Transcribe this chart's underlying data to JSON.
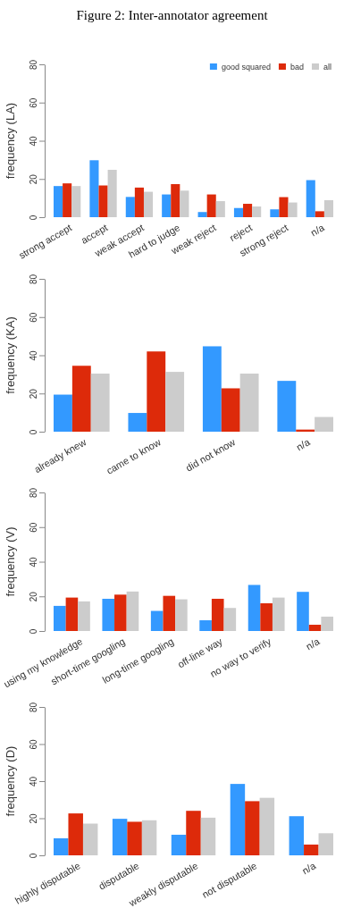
{
  "chart_data": [
    {
      "type": "bar",
      "title": "Figure 2:  Inter-annotator agreement",
      "ylabel": "frequency (LA)",
      "categories": [
        "strong accept",
        "accept",
        "weak accept",
        "hard to judge",
        "weak reject",
        "reject",
        "strong reject",
        "n/a"
      ],
      "ylim": [
        0,
        80
      ],
      "yticks": [
        0,
        20,
        40,
        60,
        80
      ],
      "legend": "top right",
      "series": [
        {
          "name": "good squared",
          "color": "#3399ff",
          "values": [
            16.3,
            29.8,
            10.6,
            11.9,
            2.7,
            4.8,
            4.1,
            19.4
          ]
        },
        {
          "name": "bad",
          "color": "#dd2a0a",
          "values": [
            17.7,
            16.6,
            15.5,
            17.3,
            11.9,
            7,
            10.5,
            3.1
          ]
        },
        {
          "name": "all",
          "color": "#cccccc",
          "values": [
            16.3,
            24.8,
            13.3,
            13.9,
            8.4,
            5.6,
            7.7,
            8.9
          ]
        }
      ]
    },
    {
      "type": "bar",
      "ylabel": "frequency (KA)",
      "categories": [
        "already knew",
        "came to know",
        "did not know",
        "n/a"
      ],
      "ylim": [
        0,
        80
      ],
      "yticks": [
        0,
        20,
        40,
        60,
        80
      ],
      "series": [
        {
          "color": "#3399ff",
          "values": [
            19.4,
            9.8,
            44.7,
            26.6
          ]
        },
        {
          "color": "#dd2a0a",
          "values": [
            34.5,
            42,
            22.7,
            1.1
          ]
        },
        {
          "color": "#cccccc",
          "values": [
            30.4,
            31.3,
            30.4,
            7.7
          ]
        }
      ]
    },
    {
      "type": "bar",
      "ylabel": "frequency (V)",
      "categories": [
        "using my knowledge",
        "short-time googling",
        "long-time googling",
        "off-line way",
        "no way to verify",
        "n/a"
      ],
      "ylim": [
        0,
        80
      ],
      "yticks": [
        0,
        20,
        40,
        60,
        80
      ],
      "series": [
        {
          "color": "#3399ff",
          "values": [
            14.5,
            18.6,
            11.6,
            6.2,
            26.6,
            22.6
          ]
        },
        {
          "color": "#dd2a0a",
          "values": [
            19.3,
            21,
            20.3,
            18.6,
            16,
            3.6
          ]
        },
        {
          "color": "#cccccc",
          "values": [
            17.1,
            22.8,
            18.3,
            13.3,
            19.3,
            8.3
          ]
        }
      ]
    },
    {
      "type": "bar",
      "ylabel": "frequency (D)",
      "categories": [
        "highly disputable",
        "disputable",
        "weakly disputable",
        "not disputable",
        "n/a"
      ],
      "ylim": [
        0,
        80
      ],
      "yticks": [
        0,
        20,
        40,
        60,
        80
      ],
      "series": [
        {
          "color": "#3399ff",
          "values": [
            9.2,
            19.7,
            11.1,
            38.5,
            21.1
          ]
        },
        {
          "color": "#dd2a0a",
          "values": [
            22.6,
            18.1,
            24,
            29.2,
            5.8
          ]
        },
        {
          "color": "#cccccc",
          "values": [
            17.1,
            18.9,
            20.3,
            31,
            11.9
          ]
        }
      ]
    }
  ]
}
